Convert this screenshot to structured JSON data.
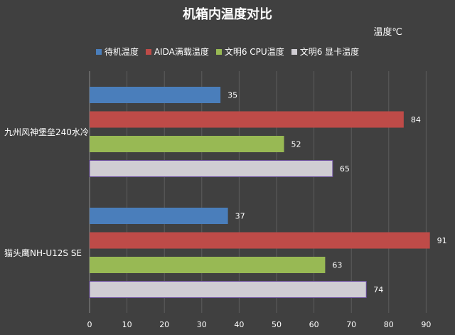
{
  "chart_data": {
    "type": "bar",
    "orientation": "horizontal",
    "title": "机箱内温度对比",
    "unit_label": "温度℃",
    "categories": [
      "九州风神堡垒240水冷",
      "猫头鹰NH-U12S SE"
    ],
    "series": [
      {
        "name": "待机温度",
        "color": "#4a7ebb",
        "values": [
          35,
          37
        ]
      },
      {
        "name": "AIDA满载温度",
        "color": "#be4b48",
        "values": [
          84,
          91
        ]
      },
      {
        "name": "文明6 CPU温度",
        "color": "#98b954",
        "values": [
          52,
          63
        ]
      },
      {
        "name": "文明6 显卡温度",
        "color": "#d0cdd3",
        "values": [
          65,
          74
        ]
      }
    ],
    "xlim": [
      0,
      95
    ],
    "xticks": [
      0,
      10,
      20,
      30,
      40,
      50,
      60,
      70,
      80,
      90
    ],
    "grid": true,
    "legend_position": "top"
  }
}
